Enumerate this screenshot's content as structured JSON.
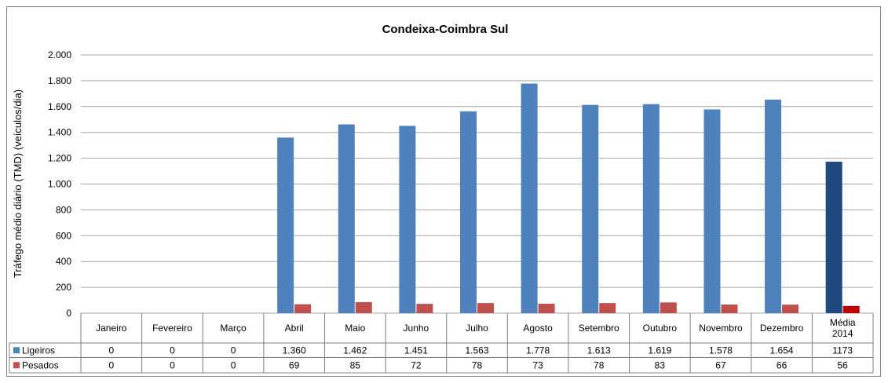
{
  "chart_data": {
    "type": "bar",
    "title": "Condeixa-Coimbra Sul",
    "xlabel": "",
    "ylabel": "Tráfego médio diário (TMD) (veículos/dia)",
    "ylim": [
      0,
      2000
    ],
    "yticks": [
      0,
      200,
      400,
      600,
      800,
      1000,
      1200,
      1400,
      1600,
      1800,
      2000
    ],
    "ytick_labels": [
      "0",
      "200",
      "400",
      "600",
      "800",
      "1.000",
      "1.200",
      "1.400",
      "1.600",
      "1.800",
      "2.000"
    ],
    "grid": true,
    "legend": "data table rows",
    "categories": [
      "Janeiro",
      "Fevereiro",
      "Março",
      "Abril",
      "Maio",
      "Junho",
      "Julho",
      "Agosto",
      "Setembro",
      "Outubro",
      "Novembro",
      "Dezembro",
      "Média 2014"
    ],
    "category_lines": [
      [
        "Janeiro"
      ],
      [
        "Fevereiro"
      ],
      [
        "Março"
      ],
      [
        "Abril"
      ],
      [
        "Maio"
      ],
      [
        "Junho"
      ],
      [
        "Julho"
      ],
      [
        "Agosto"
      ],
      [
        "Setembro"
      ],
      [
        "Outubro"
      ],
      [
        "Novembro"
      ],
      [
        "Dezembro"
      ],
      [
        "Média",
        "2014"
      ]
    ],
    "series": [
      {
        "name": "Ligeiros",
        "values": [
          0,
          0,
          0,
          1360,
          1462,
          1451,
          1563,
          1778,
          1613,
          1619,
          1578,
          1654,
          1173
        ],
        "labels": [
          "0",
          "0",
          "0",
          "1.360",
          "1.462",
          "1.451",
          "1.563",
          "1.778",
          "1.613",
          "1.619",
          "1.578",
          "1.654",
          "1173"
        ],
        "color": "#4f81bd",
        "highlight_color": "#1f497d"
      },
      {
        "name": "Pesados",
        "values": [
          0,
          0,
          0,
          69,
          85,
          72,
          78,
          73,
          78,
          83,
          67,
          66,
          56
        ],
        "labels": [
          "0",
          "0",
          "0",
          "69",
          "85",
          "72",
          "78",
          "73",
          "78",
          "83",
          "67",
          "66",
          "56"
        ],
        "color": "#c0504d",
        "highlight_color": "#c00000"
      }
    ]
  }
}
